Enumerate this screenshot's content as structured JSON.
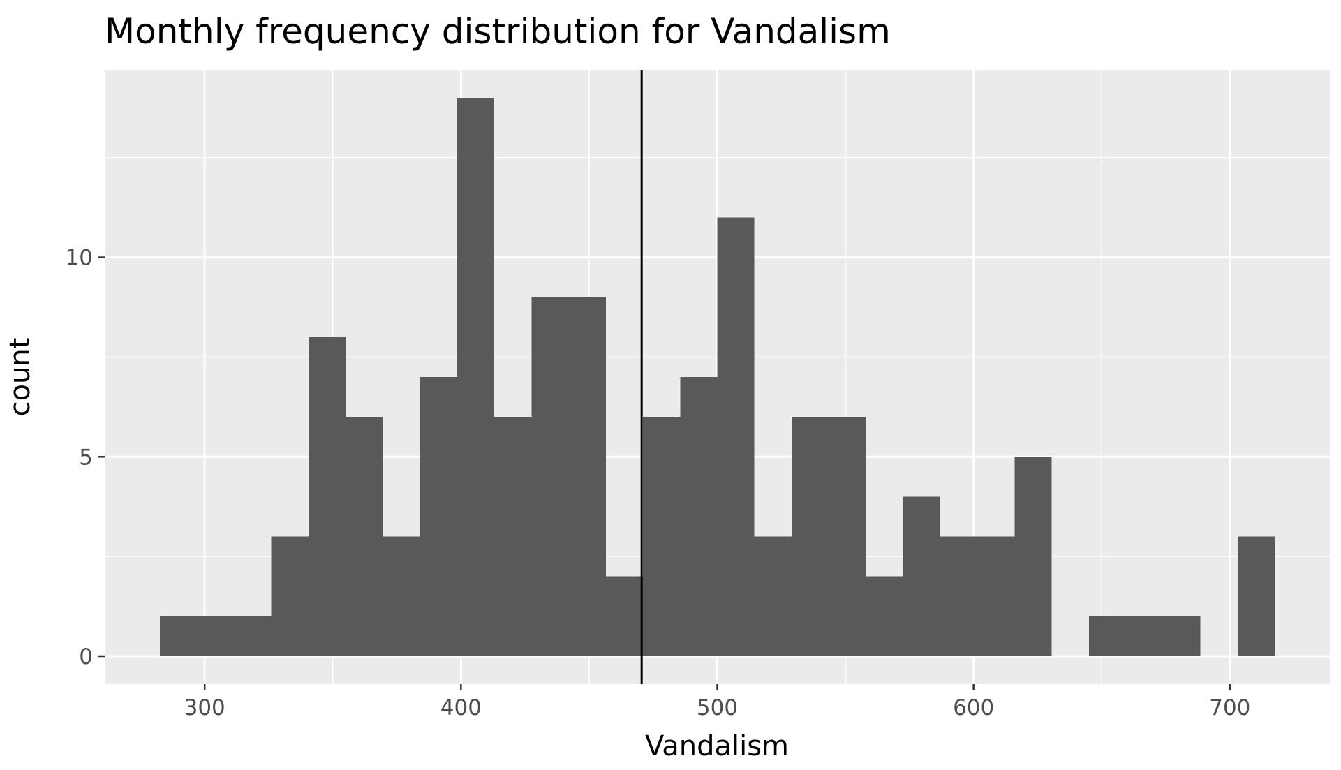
{
  "chart_data": {
    "type": "histogram",
    "title": "Monthly frequency distribution for Vandalism",
    "xlabel": "Vandalism",
    "ylabel": "count",
    "xlim": [
      261,
      739
    ],
    "ylim": [
      -0.7,
      14.7
    ],
    "x_ticks": [
      300,
      400,
      500,
      600,
      700
    ],
    "x_tick_labels": [
      "300",
      "400",
      "500",
      "600",
      "700"
    ],
    "x_minor": [
      350,
      450,
      550,
      650
    ],
    "y_ticks": [
      0,
      5,
      10
    ],
    "y_tick_labels": [
      "0",
      "5",
      "10"
    ],
    "y_minor": [
      2.5,
      7.5,
      12.5
    ],
    "bin_width": 14.5,
    "bins": [
      {
        "x0": 282.5,
        "count": 1
      },
      {
        "x0": 297.0,
        "count": 1
      },
      {
        "x0": 311.5,
        "count": 1
      },
      {
        "x0": 326.0,
        "count": 3
      },
      {
        "x0": 340.5,
        "count": 8
      },
      {
        "x0": 355.0,
        "count": 6
      },
      {
        "x0": 369.5,
        "count": 3
      },
      {
        "x0": 384.0,
        "count": 7
      },
      {
        "x0": 398.5,
        "count": 14
      },
      {
        "x0": 413.0,
        "count": 6
      },
      {
        "x0": 427.5,
        "count": 9
      },
      {
        "x0": 442.0,
        "count": 9
      },
      {
        "x0": 456.5,
        "count": 2
      },
      {
        "x0": 471.0,
        "count": 6
      },
      {
        "x0": 485.5,
        "count": 7
      },
      {
        "x0": 500.0,
        "count": 11
      },
      {
        "x0": 514.5,
        "count": 3
      },
      {
        "x0": 529.0,
        "count": 6
      },
      {
        "x0": 543.5,
        "count": 6
      },
      {
        "x0": 558.0,
        "count": 2
      },
      {
        "x0": 572.5,
        "count": 4
      },
      {
        "x0": 587.0,
        "count": 3
      },
      {
        "x0": 601.5,
        "count": 3
      },
      {
        "x0": 616.0,
        "count": 5
      },
      {
        "x0": 630.5,
        "count": 0
      },
      {
        "x0": 645.0,
        "count": 1
      },
      {
        "x0": 659.5,
        "count": 1
      },
      {
        "x0": 674.0,
        "count": 1
      },
      {
        "x0": 688.5,
        "count": 0
      },
      {
        "x0": 703.0,
        "count": 3
      }
    ],
    "reference_line_x": 470.5,
    "colors": {
      "panel": "#ebebeb",
      "grid": "#ffffff",
      "bar": "#595959",
      "ref_line": "#000000",
      "tick_text": "#4d4d4d",
      "tick_mark": "#333333"
    },
    "grid": true,
    "legend": "none"
  }
}
